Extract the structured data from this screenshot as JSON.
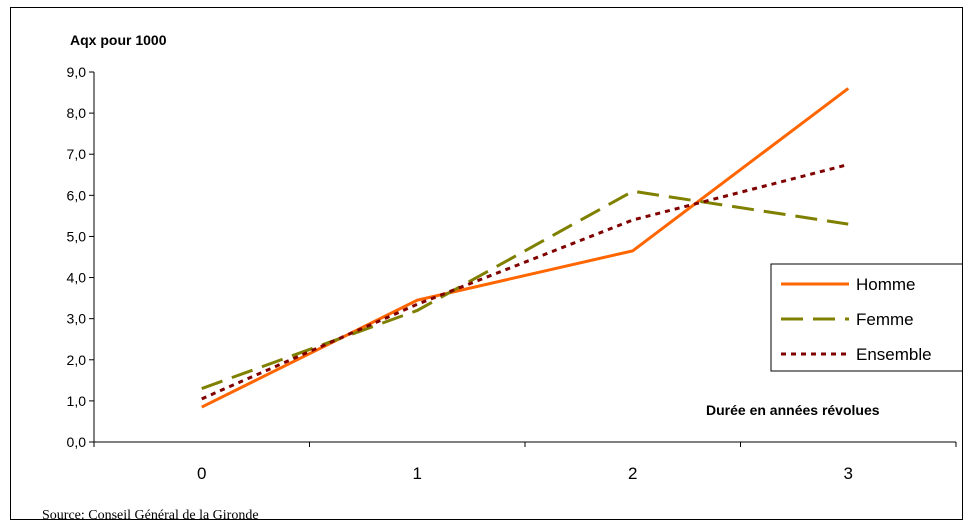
{
  "chart_data": {
    "type": "line",
    "ylabel": "Aqx pour 1000",
    "xlabel": "Durée en années révolues",
    "categories": [
      "0",
      "1",
      "2",
      "3"
    ],
    "ylim": [
      0,
      9
    ],
    "yticks": [
      "0,0",
      "1,0",
      "2,0",
      "3,0",
      "4,0",
      "5,0",
      "6,0",
      "7,0",
      "8,0",
      "9,0"
    ],
    "grid": false,
    "legend_position": "right",
    "series": [
      {
        "name": "Homme",
        "values": [
          0.85,
          3.45,
          4.65,
          8.6
        ],
        "color": "#ff6600",
        "style": "solid"
      },
      {
        "name": "Femme",
        "values": [
          1.3,
          3.2,
          6.1,
          5.3
        ],
        "color": "#808000",
        "style": "dashed"
      },
      {
        "name": "Ensemble",
        "values": [
          1.05,
          3.35,
          5.4,
          6.75
        ],
        "color": "#800000",
        "style": "dotted"
      }
    ]
  },
  "source": "Source: Conseil Général de la Gironde"
}
